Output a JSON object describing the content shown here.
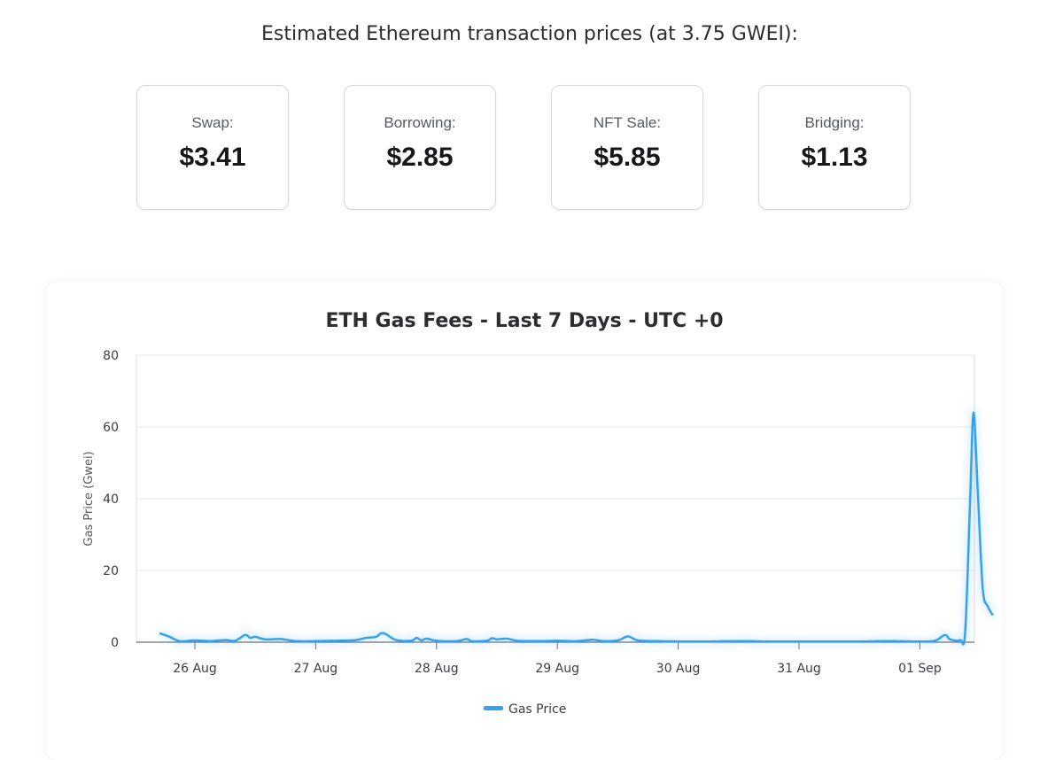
{
  "header": {
    "title": "Estimated Ethereum transaction prices (at 3.75 GWEI):"
  },
  "cards": [
    {
      "label": "Swap:",
      "value": "$3.41"
    },
    {
      "label": "Borrowing:",
      "value": "$2.85"
    },
    {
      "label": "NFT Sale:",
      "value": "$5.85"
    },
    {
      "label": "Bridging:",
      "value": "$1.13"
    }
  ],
  "chart_data": {
    "type": "line",
    "title": "ETH Gas Fees - Last 7 Days - UTC +0",
    "xlabel": "",
    "ylabel": "Gas Price (Gwei)",
    "ylim": [
      0,
      80
    ],
    "yticks": [
      0,
      20,
      40,
      60,
      80
    ],
    "xticks": [
      "26 Aug",
      "27 Aug",
      "28 Aug",
      "29 Aug",
      "30 Aug",
      "31 Aug",
      "01 Sep"
    ],
    "grid": true,
    "legend_position": "bottom",
    "line_color": "#36a2eb",
    "series": [
      {
        "name": "Gas Price",
        "points": [
          [
            "2025-08-25 17:00",
            2.5
          ],
          [
            "2025-08-25 19:00",
            1.5
          ],
          [
            "2025-08-25 21:00",
            0.3
          ],
          [
            "2025-08-26 00:00",
            0.5
          ],
          [
            "2025-08-26 03:00",
            0.3
          ],
          [
            "2025-08-26 06:00",
            0.6
          ],
          [
            "2025-08-26 08:00",
            0.4
          ],
          [
            "2025-08-26 10:00",
            2.0
          ],
          [
            "2025-08-26 11:00",
            1.2
          ],
          [
            "2025-08-26 12:00",
            1.5
          ],
          [
            "2025-08-26 14:00",
            0.8
          ],
          [
            "2025-08-26 17:00",
            0.9
          ],
          [
            "2025-08-26 20:00",
            0.3
          ],
          [
            "2025-08-27 00:00",
            0.3
          ],
          [
            "2025-08-27 04:00",
            0.4
          ],
          [
            "2025-08-27 08:00",
            0.6
          ],
          [
            "2025-08-27 10:00",
            1.2
          ],
          [
            "2025-08-27 12:00",
            1.5
          ],
          [
            "2025-08-27 13:00",
            2.5
          ],
          [
            "2025-08-27 14:00",
            2.2
          ],
          [
            "2025-08-27 16:00",
            0.6
          ],
          [
            "2025-08-27 19:00",
            0.4
          ],
          [
            "2025-08-27 20:00",
            1.2
          ],
          [
            "2025-08-27 21:00",
            0.5
          ],
          [
            "2025-08-27 22:00",
            1.0
          ],
          [
            "2025-08-28 00:00",
            0.4
          ],
          [
            "2025-08-28 04:00",
            0.3
          ],
          [
            "2025-08-28 06:00",
            0.9
          ],
          [
            "2025-08-28 07:00",
            0.3
          ],
          [
            "2025-08-28 10:00",
            0.4
          ],
          [
            "2025-08-28 11:00",
            1.1
          ],
          [
            "2025-08-28 12:00",
            0.8
          ],
          [
            "2025-08-28 14:00",
            1.0
          ],
          [
            "2025-08-28 16:00",
            0.4
          ],
          [
            "2025-08-28 20:00",
            0.3
          ],
          [
            "2025-08-29 00:00",
            0.4
          ],
          [
            "2025-08-29 04:00",
            0.3
          ],
          [
            "2025-08-29 07:00",
            0.7
          ],
          [
            "2025-08-29 09:00",
            0.3
          ],
          [
            "2025-08-29 12:00",
            0.5
          ],
          [
            "2025-08-29 14:00",
            1.6
          ],
          [
            "2025-08-29 16:00",
            0.5
          ],
          [
            "2025-08-29 20:00",
            0.3
          ],
          [
            "2025-08-30 00:00",
            0.2
          ],
          [
            "2025-08-30 06:00",
            0.2
          ],
          [
            "2025-08-30 12:00",
            0.3
          ],
          [
            "2025-08-30 18:00",
            0.2
          ],
          [
            "2025-08-31 00:00",
            0.2
          ],
          [
            "2025-08-31 06:00",
            0.2
          ],
          [
            "2025-08-31 12:00",
            0.2
          ],
          [
            "2025-08-31 18:00",
            0.3
          ],
          [
            "2025-09-01 00:00",
            0.2
          ],
          [
            "2025-09-01 03:00",
            0.4
          ],
          [
            "2025-09-01 05:00",
            2.0
          ],
          [
            "2025-09-01 06:00",
            0.8
          ],
          [
            "2025-09-01 08:00",
            0.6
          ],
          [
            "2025-09-01 09:00",
            3.0
          ],
          [
            "2025-09-01 10:00",
            40.0
          ],
          [
            "2025-09-01 10:40",
            64.0
          ],
          [
            "2025-09-01 11:30",
            42.0
          ],
          [
            "2025-09-01 12:30",
            15.0
          ],
          [
            "2025-09-01 13:30",
            10.0
          ],
          [
            "2025-09-01 14:30",
            7.5
          ]
        ]
      }
    ]
  }
}
